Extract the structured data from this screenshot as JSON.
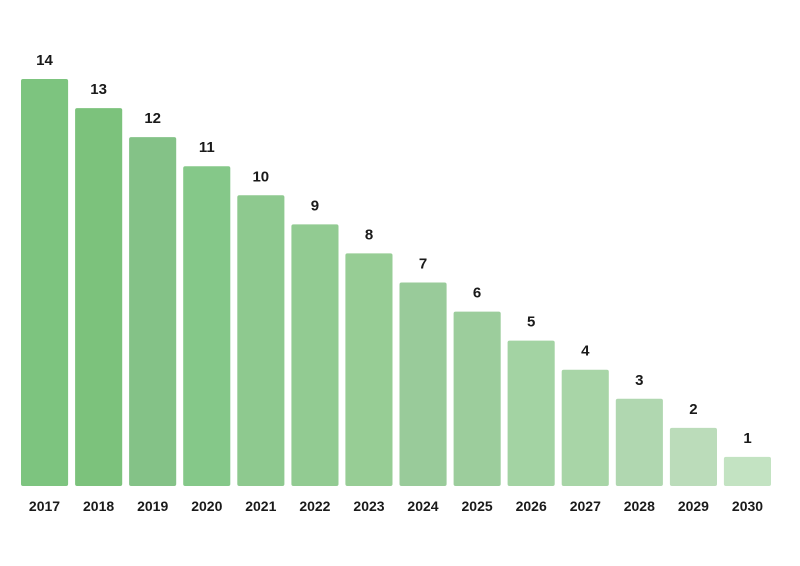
{
  "chart_data": {
    "type": "bar",
    "categories": [
      "2017",
      "2018",
      "2019",
      "2020",
      "2021",
      "2022",
      "2023",
      "2024",
      "2025",
      "2026",
      "2027",
      "2028",
      "2029",
      "2030"
    ],
    "values": [
      14,
      13,
      12,
      11,
      10,
      9,
      8,
      7,
      6,
      5,
      4,
      3,
      2,
      1
    ],
    "colors": [
      "#7dc47f",
      "#7cc27c",
      "#84c287",
      "#85c889",
      "#8ec98f",
      "#92cb92",
      "#97cd95",
      "#99cb9a",
      "#9ccd9c",
      "#a3d3a3",
      "#a8d5a7",
      "#b0d7b0",
      "#bbdcba",
      "#c3e3c2"
    ],
    "title": "",
    "xlabel": "",
    "ylabel": "",
    "ylim": [
      0,
      14
    ],
    "grid": false,
    "data_labels": true
  }
}
